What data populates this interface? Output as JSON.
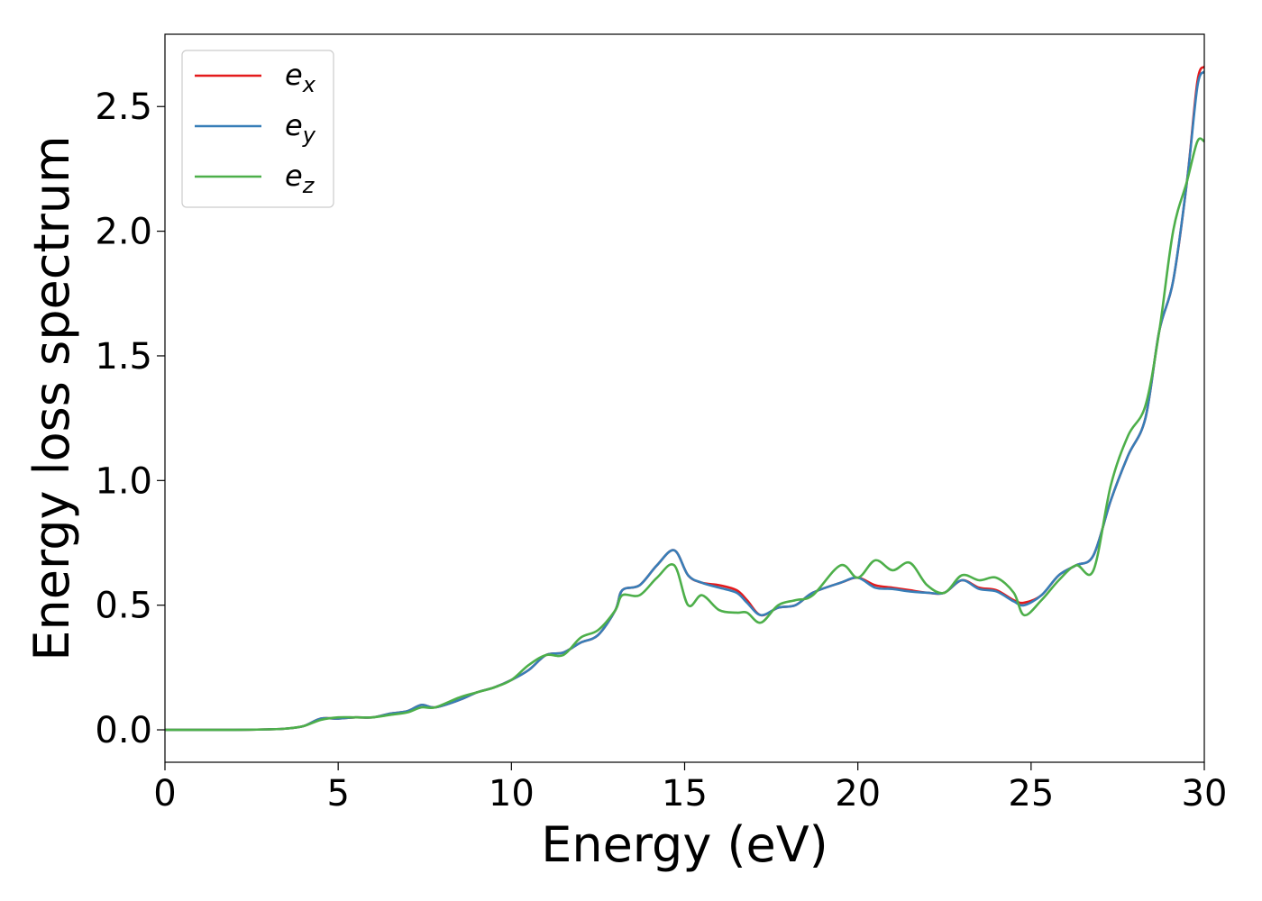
{
  "chart_data": {
    "type": "line",
    "xlabel": "Energy (eV)",
    "ylabel": "Energy loss spectrum",
    "xlim": [
      0,
      30
    ],
    "ylim": [
      -0.13,
      2.79
    ],
    "xticks": [
      0,
      5,
      10,
      15,
      20,
      25,
      30
    ],
    "yticks": [
      0.0,
      0.5,
      1.0,
      1.5,
      2.0,
      2.5
    ],
    "xtick_labels": [
      "0",
      "5",
      "10",
      "15",
      "20",
      "25",
      "30"
    ],
    "ytick_labels": [
      "0.0",
      "0.5",
      "1.0",
      "1.5",
      "2.0",
      "2.5"
    ],
    "grid": false,
    "legend_position": "upper-left",
    "x": [
      0,
      2,
      3,
      3.5,
      4,
      4.5,
      5,
      5.5,
      6,
      6.5,
      7,
      7.4,
      7.8,
      8.5,
      9,
      9.5,
      10,
      10.5,
      11,
      11.5,
      12,
      12.5,
      13,
      13.2,
      13.7,
      14.2,
      14.7,
      15.1,
      15.5,
      16,
      16.5,
      16.8,
      17.2,
      17.7,
      18.2,
      18.7,
      19.5,
      20,
      20.5,
      21,
      21.5,
      22,
      22.5,
      23,
      23.5,
      24,
      24.5,
      24.8,
      25.3,
      25.8,
      26.3,
      26.8,
      27.3,
      27.8,
      28.3,
      28.7,
      29.1,
      29.5,
      29.8,
      30
    ],
    "series": [
      {
        "name": "e_x",
        "label_base": "e",
        "label_sub": "x",
        "color": "#e41a1c",
        "values": [
          0,
          0,
          0.002,
          0.005,
          0.015,
          0.045,
          0.045,
          0.05,
          0.05,
          0.065,
          0.075,
          0.1,
          0.09,
          0.12,
          0.15,
          0.17,
          0.2,
          0.24,
          0.3,
          0.31,
          0.35,
          0.38,
          0.48,
          0.56,
          0.58,
          0.66,
          0.72,
          0.62,
          0.59,
          0.58,
          0.56,
          0.52,
          0.46,
          0.49,
          0.5,
          0.55,
          0.59,
          0.61,
          0.58,
          0.57,
          0.56,
          0.55,
          0.55,
          0.6,
          0.57,
          0.56,
          0.52,
          0.51,
          0.54,
          0.62,
          0.66,
          0.7,
          0.92,
          1.1,
          1.25,
          1.6,
          1.8,
          2.2,
          2.6,
          2.66
        ]
      },
      {
        "name": "e_y",
        "label_base": "e",
        "label_sub": "y",
        "color": "#377eb8",
        "values": [
          0,
          0,
          0.002,
          0.005,
          0.015,
          0.045,
          0.045,
          0.05,
          0.05,
          0.065,
          0.075,
          0.1,
          0.09,
          0.12,
          0.15,
          0.17,
          0.2,
          0.24,
          0.3,
          0.31,
          0.35,
          0.38,
          0.48,
          0.56,
          0.58,
          0.66,
          0.72,
          0.62,
          0.59,
          0.57,
          0.55,
          0.51,
          0.46,
          0.49,
          0.5,
          0.55,
          0.59,
          0.61,
          0.57,
          0.565,
          0.555,
          0.55,
          0.55,
          0.6,
          0.565,
          0.555,
          0.515,
          0.5,
          0.54,
          0.62,
          0.66,
          0.7,
          0.92,
          1.1,
          1.25,
          1.6,
          1.8,
          2.2,
          2.58,
          2.64
        ]
      },
      {
        "name": "e_z",
        "label_base": "e",
        "label_sub": "z",
        "color": "#4daf4a",
        "values": [
          0,
          0,
          0.002,
          0.005,
          0.015,
          0.04,
          0.05,
          0.05,
          0.05,
          0.06,
          0.07,
          0.09,
          0.09,
          0.13,
          0.15,
          0.17,
          0.2,
          0.26,
          0.3,
          0.3,
          0.37,
          0.4,
          0.48,
          0.54,
          0.54,
          0.61,
          0.66,
          0.5,
          0.54,
          0.48,
          0.47,
          0.47,
          0.43,
          0.5,
          0.52,
          0.54,
          0.66,
          0.61,
          0.68,
          0.64,
          0.67,
          0.58,
          0.55,
          0.62,
          0.6,
          0.61,
          0.55,
          0.46,
          0.52,
          0.6,
          0.66,
          0.64,
          0.98,
          1.18,
          1.3,
          1.6,
          2.0,
          2.2,
          2.36,
          2.36
        ]
      }
    ]
  }
}
